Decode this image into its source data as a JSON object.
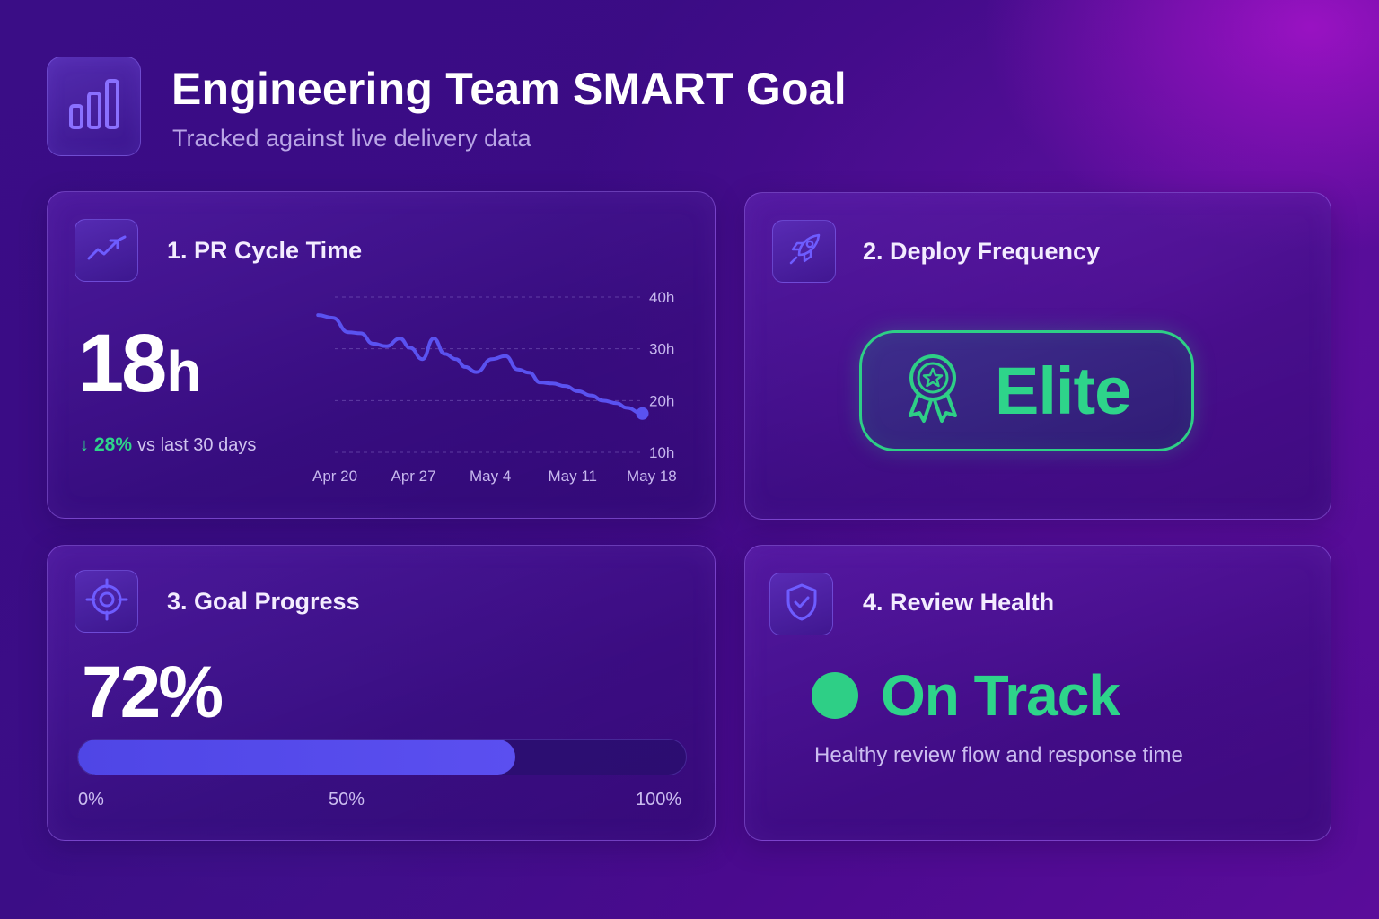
{
  "header": {
    "title": "Engineering Team SMART Goal",
    "subtitle": "Tracked against live delivery data",
    "logo_icon": "bar-chart-icon"
  },
  "cards": {
    "pr_cycle": {
      "title": "1. PR Cycle Time",
      "icon": "trend-line-icon",
      "value": "18",
      "unit": "h",
      "delta_arrow": "↓",
      "delta_value": "28%",
      "delta_label": "vs last 30 days"
    },
    "deploy": {
      "title": "2. Deploy Frequency",
      "icon": "rocket-icon",
      "badge_icon": "award-ribbon-icon",
      "badge_text": "Elite"
    },
    "progress": {
      "title": "3. Goal Progress",
      "icon": "target-icon",
      "value": "72%",
      "fraction": 0.72,
      "labels": [
        "0%",
        "50%",
        "100%"
      ]
    },
    "review": {
      "title": "4. Review Health",
      "icon": "shield-check-icon",
      "status": "On Track",
      "description": "Healthy review flow and response time"
    }
  },
  "colors": {
    "accent_green": "#2ed48a",
    "accent_blue": "#5048e8",
    "chart_line": "#5a52f0"
  },
  "chart_data": {
    "type": "line",
    "title": "",
    "xlabel": "",
    "ylabel": "",
    "x_ticks": [
      "Apr 20",
      "Apr 27",
      "May 4",
      "May 11",
      "May 18"
    ],
    "y_ticks": [
      "40h",
      "30h",
      "20h",
      "10h"
    ],
    "ylim": [
      10,
      40
    ],
    "x_range": [
      0,
      28
    ],
    "grid": true,
    "series": [
      {
        "values_x": [
          -1.5,
          -0.2,
          1.2,
          2.3,
          3.4,
          4.6,
          5.8,
          6.7,
          7.8,
          8.8,
          9.8,
          10.8,
          11.6,
          12.6,
          14.0,
          15.2,
          16.3,
          17.3,
          18.3,
          19.4,
          20.5,
          21.7,
          22.8,
          23.9,
          25.1,
          26.0,
          27.4
        ],
        "values_y": [
          36.5,
          36.0,
          33.2,
          33.0,
          31.0,
          30.5,
          32.0,
          30.2,
          28.0,
          32.0,
          29.0,
          28.0,
          26.5,
          25.5,
          28.0,
          28.6,
          26.0,
          25.4,
          23.5,
          23.3,
          22.8,
          21.8,
          21.0,
          20.0,
          19.5,
          18.6,
          17.5
        ]
      }
    ]
  }
}
